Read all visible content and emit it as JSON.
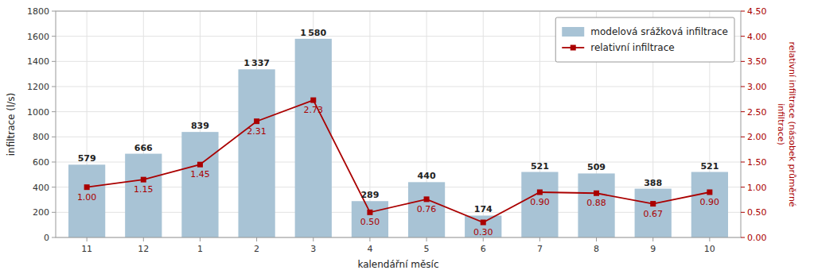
{
  "chart_data": {
    "type": "bar",
    "x_label": "kalendářní měsíc",
    "y_label": "infiltrace (l/s)",
    "y2_label": "relativní infiltrace (násobek průměrné\ninfiltrace)",
    "categories": [
      "11",
      "12",
      "1",
      "2",
      "3",
      "4",
      "5",
      "6",
      "7",
      "8",
      "9",
      "10"
    ],
    "series": [
      {
        "name": "modelová srážková infiltrace",
        "type": "bar",
        "color": "#a8c3d5",
        "values": [
          579,
          666,
          839,
          1337,
          1580,
          289,
          440,
          174,
          521,
          509,
          388,
          521
        ],
        "value_labels": [
          "579",
          "666",
          "839",
          "1 337",
          "1 580",
          "289",
          "440",
          "174",
          "521",
          "509",
          "388",
          "521"
        ]
      },
      {
        "name": "relativní infiltrace",
        "type": "line",
        "axis": "y2",
        "color": "#aa0000",
        "marker": "square",
        "values": [
          1.0,
          1.15,
          1.45,
          2.31,
          2.73,
          0.5,
          0.76,
          0.3,
          0.9,
          0.88,
          0.67,
          0.9
        ],
        "value_labels": [
          "1.00",
          "1.15",
          "1.45",
          "2.31",
          "2.73",
          "0.50",
          "0.76",
          "0.30",
          "0.90",
          "0.88",
          "0.67",
          "0.90"
        ]
      }
    ],
    "ylim": [
      0,
      1800
    ],
    "yticks": [
      0,
      200,
      400,
      600,
      800,
      1000,
      1200,
      1400,
      1600,
      1800
    ],
    "y2lim": [
      0,
      4.5
    ],
    "y2ticks": [
      {
        "value": 0,
        "label": "0.00"
      },
      {
        "value": 0.5,
        "label": "0.50"
      },
      {
        "value": 1,
        "label": "1.00"
      },
      {
        "value": 1.5,
        "label": "1.50"
      },
      {
        "value": 2,
        "label": "2.00"
      },
      {
        "value": 2.5,
        "label": "2.50"
      },
      {
        "value": 3,
        "label": "3.00"
      },
      {
        "value": 3.5,
        "label": "3.50"
      },
      {
        "value": 4,
        "label": "4.00"
      },
      {
        "value": 4.5,
        "label": "4.50"
      }
    ],
    "grid": true,
    "legend": "upper right",
    "data_labels": true
  }
}
